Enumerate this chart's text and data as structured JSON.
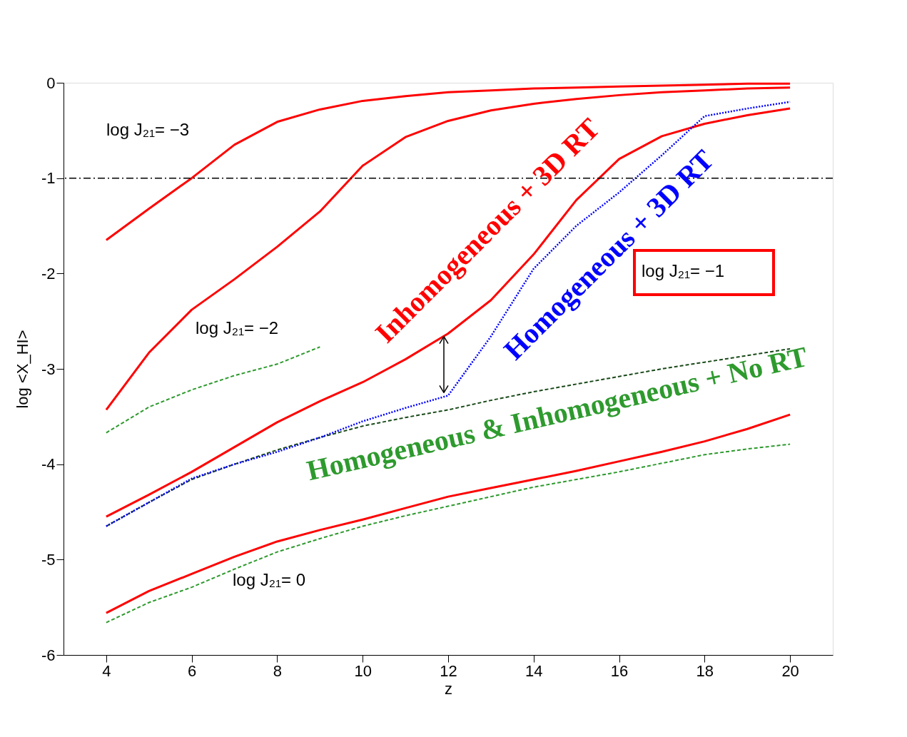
{
  "chart_data": {
    "type": "line",
    "xlabel": "z",
    "ylabel": "log <X_HI>",
    "x": [
      4,
      5,
      6,
      7,
      8,
      9,
      10,
      11,
      12,
      13,
      14,
      15,
      16,
      17,
      18,
      19,
      20
    ],
    "xlim": [
      3,
      21
    ],
    "xticks": [
      4,
      6,
      8,
      10,
      12,
      14,
      16,
      18,
      20
    ],
    "ylim": [
      -6,
      0
    ],
    "yticks": [
      -6,
      -5,
      -4,
      -3,
      -2,
      -1,
      0
    ],
    "grid": false,
    "marker": "none",
    "series": [
      {
        "color": "#ff0000",
        "line_style": "solid",
        "values": [
          -1.65,
          -1.32,
          -1.0,
          -0.65,
          -0.41,
          -0.28,
          -0.19,
          -0.14,
          -0.1,
          -0.08,
          -0.06,
          -0.05,
          -0.04,
          -0.03,
          -0.02,
          -0.01,
          -0.01
        ]
      },
      {
        "color": "#ff0000",
        "line_style": "solid",
        "values": [
          -3.43,
          -2.83,
          -2.38,
          -2.06,
          -1.72,
          -1.35,
          -0.87,
          -0.57,
          -0.4,
          -0.29,
          -0.22,
          -0.17,
          -0.13,
          -0.1,
          -0.08,
          -0.06,
          -0.05
        ]
      },
      {
        "color": "#2e9a2e",
        "line_style": "dashed",
        "x": [
          4,
          5,
          6,
          7,
          8,
          9
        ],
        "values": [
          -3.67,
          -3.4,
          -3.22,
          -3.07,
          -2.95,
          -2.77
        ]
      },
      {
        "color": "#ff0000",
        "line_style": "solid",
        "values": [
          -4.55,
          -4.32,
          -4.08,
          -3.82,
          -3.56,
          -3.34,
          -3.14,
          -2.9,
          -2.63,
          -2.28,
          -1.8,
          -1.23,
          -0.8,
          -0.56,
          -0.43,
          -0.34,
          -0.27
        ]
      },
      {
        "color": "#1a4a1a",
        "line_style": "dashed",
        "values": [
          -4.65,
          -4.4,
          -4.16,
          -4.0,
          -3.85,
          -3.72,
          -3.6,
          -3.51,
          -3.43,
          -3.33,
          -3.24,
          -3.16,
          -3.08,
          -3.0,
          -2.93,
          -2.86,
          -2.79
        ]
      },
      {
        "color": "#0000ff",
        "line_style": "dotted",
        "values": [
          -4.65,
          -4.4,
          -4.15,
          -4.0,
          -3.87,
          -3.72,
          -3.55,
          -3.41,
          -3.28,
          -2.66,
          -1.95,
          -1.5,
          -1.15,
          -0.76,
          -0.35,
          -0.27,
          -0.2
        ]
      },
      {
        "color": "#ff0000",
        "line_style": "solid",
        "values": [
          -5.56,
          -5.33,
          -5.15,
          -4.97,
          -4.81,
          -4.69,
          -4.58,
          -4.46,
          -4.34,
          -4.25,
          -4.16,
          -4.07,
          -3.97,
          -3.87,
          -3.76,
          -3.63,
          -3.48
        ]
      },
      {
        "color": "#2e9a2e",
        "line_style": "dashed",
        "values": [
          -5.66,
          -5.45,
          -5.29,
          -5.1,
          -4.92,
          -4.78,
          -4.65,
          -4.54,
          -4.44,
          -4.34,
          -4.24,
          -4.16,
          -4.08,
          -3.99,
          -3.9,
          -3.84,
          -3.79
        ]
      }
    ],
    "ref_lines": [
      {
        "axis": "y",
        "value": -1,
        "line_style": "dashdot",
        "color": "#000000"
      }
    ],
    "annotations": [
      "log J₂₁= −3",
      "log J₂₁= −2",
      "log J₂₁= −1",
      "log J₂₁= 0",
      "Inhomogeneous + 3D RT",
      "Homogeneous + 3D RT",
      "Homogeneous & Inhomogeneous + No RT"
    ]
  }
}
